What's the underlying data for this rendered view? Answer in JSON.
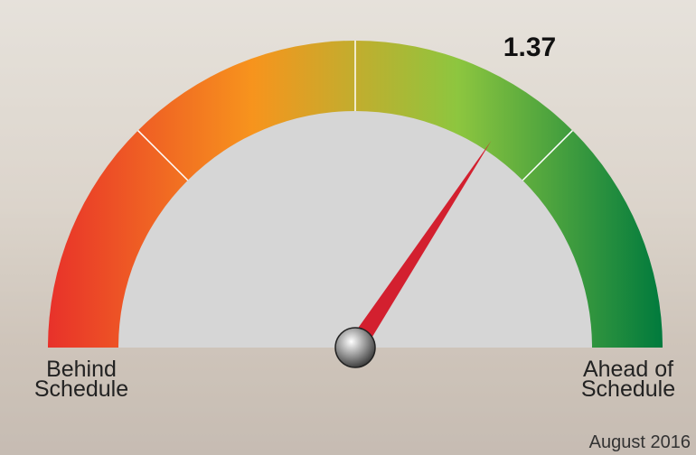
{
  "chart_data": {
    "type": "gauge",
    "value": 1.37,
    "ylim": [
      0,
      2
    ],
    "yticks": [
      0.5,
      1,
      1.5
    ],
    "colors": [
      "#e8312a",
      "#f7941d",
      "#8dc63f",
      "#007a3d"
    ],
    "needle_color": "#d3202f",
    "left_label": "Behind Schedule",
    "right_label": "Ahead of Schedule",
    "date": "August 2016"
  }
}
